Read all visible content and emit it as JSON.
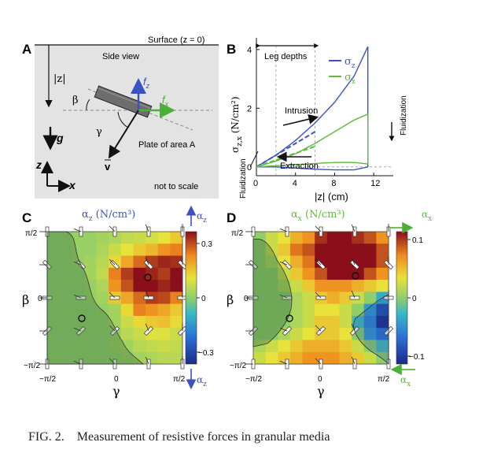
{
  "panelA": {
    "label": "A",
    "surface": "Surface (z = 0)",
    "side_view": "Side view",
    "depth": "|z|",
    "beta": "β",
    "gamma": "γ",
    "fz": "f",
    "fz_sub": "z",
    "fx": "f",
    "fx_sub": "x",
    "g": "g",
    "v": "v",
    "plate": "Plate of area A",
    "z": "z",
    "x": "x",
    "scale_note": "not to scale",
    "colors": {
      "fz": "#3a52c4",
      "fx": "#3fb43a"
    }
  },
  "panelB": {
    "label": "B",
    "leg_depths": "Leg depths",
    "intrusion": "Intrusion",
    "extraction": "Extraction",
    "fluidization": "Fluidization",
    "legend_z": "σ",
    "legend_z_sub": "z",
    "legend_x": "σ",
    "legend_x_sub": "x",
    "ylabel": "σ",
    "ylabel_sub": "z,x",
    "ylabel_unit": " (N/cm²)",
    "xlabel": "|z| (cm)",
    "xticks": [
      "0",
      "4",
      "8",
      "12"
    ],
    "yticks": [
      "0",
      "2",
      "4"
    ]
  },
  "panelC": {
    "label": "C",
    "title": "α",
    "title_sub": "z",
    "title_unit": " (N/cm³)",
    "side_top": "α",
    "side_top_sub": "z",
    "side_bottom": "α",
    "side_bottom_sub": "z",
    "cbar_ticks": [
      "0.3",
      "0",
      "−0.3"
    ],
    "xticks": [
      "−π/2",
      "0",
      "π/2"
    ],
    "yticks": [
      "π/2",
      "0",
      "−π/2"
    ],
    "xlabel": "γ",
    "ylabel": "β"
  },
  "panelD": {
    "label": "D",
    "title": "α",
    "title_sub": "x",
    "title_unit": " (N/cm³)",
    "side_top": "α",
    "side_top_sub": "x",
    "side_bottom": "α",
    "side_bottom_sub": "x",
    "cbar_ticks": [
      "0.1",
      "0",
      "−0.1"
    ],
    "xticks": [
      "−π/2",
      "0",
      "π/2"
    ],
    "yticks": [
      "π/2",
      "0",
      "−π/2"
    ],
    "xlabel": "γ",
    "ylabel": "β"
  },
  "caption": "FIG. 2.    Measurement of resistive forces in granular media",
  "chart_data": [
    {
      "type": "line",
      "panel": "B",
      "xlabel": "|z| (cm)",
      "ylabel": "σz,x (N/cm²)",
      "xlim": [
        0,
        14
      ],
      "ylim": [
        -0.3,
        4.4
      ],
      "xticks": [
        0,
        4,
        8,
        12
      ],
      "yticks": [
        0,
        2,
        4
      ],
      "leg_depth_lines": [
        2,
        6
      ],
      "series": [
        {
          "name": "σz",
          "color": "#3a52c4",
          "x": [
            0,
            2,
            4,
            6,
            8,
            10,
            11.4,
            11.4,
            10,
            8,
            6,
            4,
            2,
            0
          ],
          "y": [
            0,
            0.4,
            0.9,
            1.5,
            2.2,
            3.1,
            4.1,
            0,
            -0.1,
            -0.1,
            -0.08,
            -0.04,
            0,
            0
          ]
        },
        {
          "name": "σx",
          "color": "#5dbb3c",
          "x": [
            0,
            2,
            4,
            6,
            8,
            10,
            11.4,
            11.4,
            10,
            8,
            6,
            4,
            2,
            0
          ],
          "y": [
            0,
            0.2,
            0.45,
            0.8,
            1.2,
            1.6,
            1.8,
            0.1,
            0.15,
            0.15,
            0.12,
            0.08,
            0.04,
            0
          ]
        }
      ]
    },
    {
      "type": "heatmap",
      "panel": "C",
      "name": "αz",
      "unit": "N/cm³",
      "x_axis": "γ",
      "y_axis": "β",
      "xrange": [
        "−π/2",
        "π/2"
      ],
      "yrange": [
        "−π/2",
        "π/2"
      ],
      "color_range": [
        -0.3,
        0.3
      ],
      "grid_note": "rows from β = π/2 (top) to β = −π/2 (bottom); columns from γ = −π/2 to γ = π/2",
      "values": [
        [
          0.0,
          0.0,
          0.01,
          0.01,
          0.02,
          0.03,
          0.05,
          0.06,
          0.07,
          0.09,
          0.12
        ],
        [
          0.0,
          0.0,
          0.01,
          0.01,
          0.03,
          0.06,
          0.09,
          0.12,
          0.14,
          0.18,
          0.2
        ],
        [
          0.0,
          0.0,
          0.01,
          0.02,
          0.04,
          0.1,
          0.16,
          0.22,
          0.26,
          0.28,
          0.27
        ],
        [
          0.0,
          0.0,
          0.0,
          0.02,
          0.05,
          0.2,
          0.26,
          0.3,
          0.28,
          0.26,
          0.3
        ],
        [
          0.0,
          0.0,
          0.0,
          0.01,
          0.03,
          0.18,
          0.24,
          0.3,
          0.3,
          0.28,
          0.32
        ],
        [
          0.0,
          0.0,
          0.0,
          0.01,
          0.02,
          0.12,
          0.16,
          0.22,
          0.26,
          0.25,
          0.2
        ],
        [
          0.0,
          0.0,
          0.0,
          0.0,
          0.01,
          0.02,
          0.1,
          0.2,
          0.18,
          0.16,
          0.12
        ],
        [
          0.0,
          0.0,
          0.0,
          0.0,
          0.0,
          0.02,
          0.06,
          0.1,
          0.12,
          0.13,
          0.1
        ],
        [
          0.0,
          0.0,
          0.0,
          0.0,
          0.0,
          0.01,
          0.04,
          0.06,
          0.08,
          0.08,
          0.06
        ],
        [
          0.0,
          0.0,
          0.0,
          0.0,
          0.0,
          0.01,
          0.02,
          0.04,
          0.05,
          0.06,
          0.05
        ],
        [
          0.0,
          0.0,
          0.0,
          0.0,
          0.0,
          0.0,
          0.01,
          0.02,
          0.03,
          0.04,
          0.04
        ]
      ]
    },
    {
      "type": "heatmap",
      "panel": "D",
      "name": "αx",
      "unit": "N/cm³",
      "x_axis": "γ",
      "y_axis": "β",
      "xrange": [
        "−π/2",
        "π/2"
      ],
      "yrange": [
        "−π/2",
        "π/2"
      ],
      "color_range": [
        -0.1,
        0.1
      ],
      "grid_note": "rows from β = π/2 (top) to β = −π/2 (bottom); columns from γ = −π/2 to γ = π/2",
      "values": [
        [
          0.0,
          0.02,
          0.03,
          0.05,
          0.06,
          0.09,
          0.1,
          0.1,
          0.09,
          0.08,
          0.06
        ],
        [
          0.0,
          0.02,
          0.04,
          0.07,
          0.08,
          0.1,
          0.12,
          0.11,
          0.1,
          0.1,
          0.08
        ],
        [
          0.0,
          0.01,
          0.03,
          0.05,
          0.07,
          0.1,
          0.13,
          0.14,
          0.12,
          0.1,
          0.08
        ],
        [
          0.0,
          0.0,
          0.02,
          0.04,
          0.06,
          0.08,
          0.11,
          0.12,
          0.1,
          0.08,
          0.06
        ],
        [
          0.0,
          0.0,
          0.01,
          0.02,
          0.04,
          0.06,
          0.06,
          0.06,
          0.05,
          0.04,
          0.03
        ],
        [
          0.0,
          0.0,
          0.0,
          0.01,
          0.02,
          0.04,
          0.05,
          0.04,
          0.02,
          0.0,
          -0.03
        ],
        [
          0.0,
          0.0,
          0.0,
          0.01,
          0.02,
          0.03,
          0.03,
          0.02,
          0.0,
          -0.04,
          -0.08
        ],
        [
          0.0,
          0.0,
          0.0,
          0.01,
          0.02,
          0.04,
          0.04,
          0.02,
          -0.02,
          -0.05,
          -0.1
        ],
        [
          0.0,
          0.0,
          0.01,
          0.02,
          0.03,
          0.04,
          0.04,
          0.03,
          0.0,
          -0.04,
          -0.06
        ],
        [
          0.01,
          0.02,
          0.03,
          0.04,
          0.05,
          0.05,
          0.05,
          0.04,
          0.02,
          0.0,
          -0.02
        ],
        [
          0.02,
          0.03,
          0.04,
          0.05,
          0.06,
          0.06,
          0.06,
          0.05,
          0.04,
          0.02,
          0.0
        ]
      ]
    }
  ]
}
